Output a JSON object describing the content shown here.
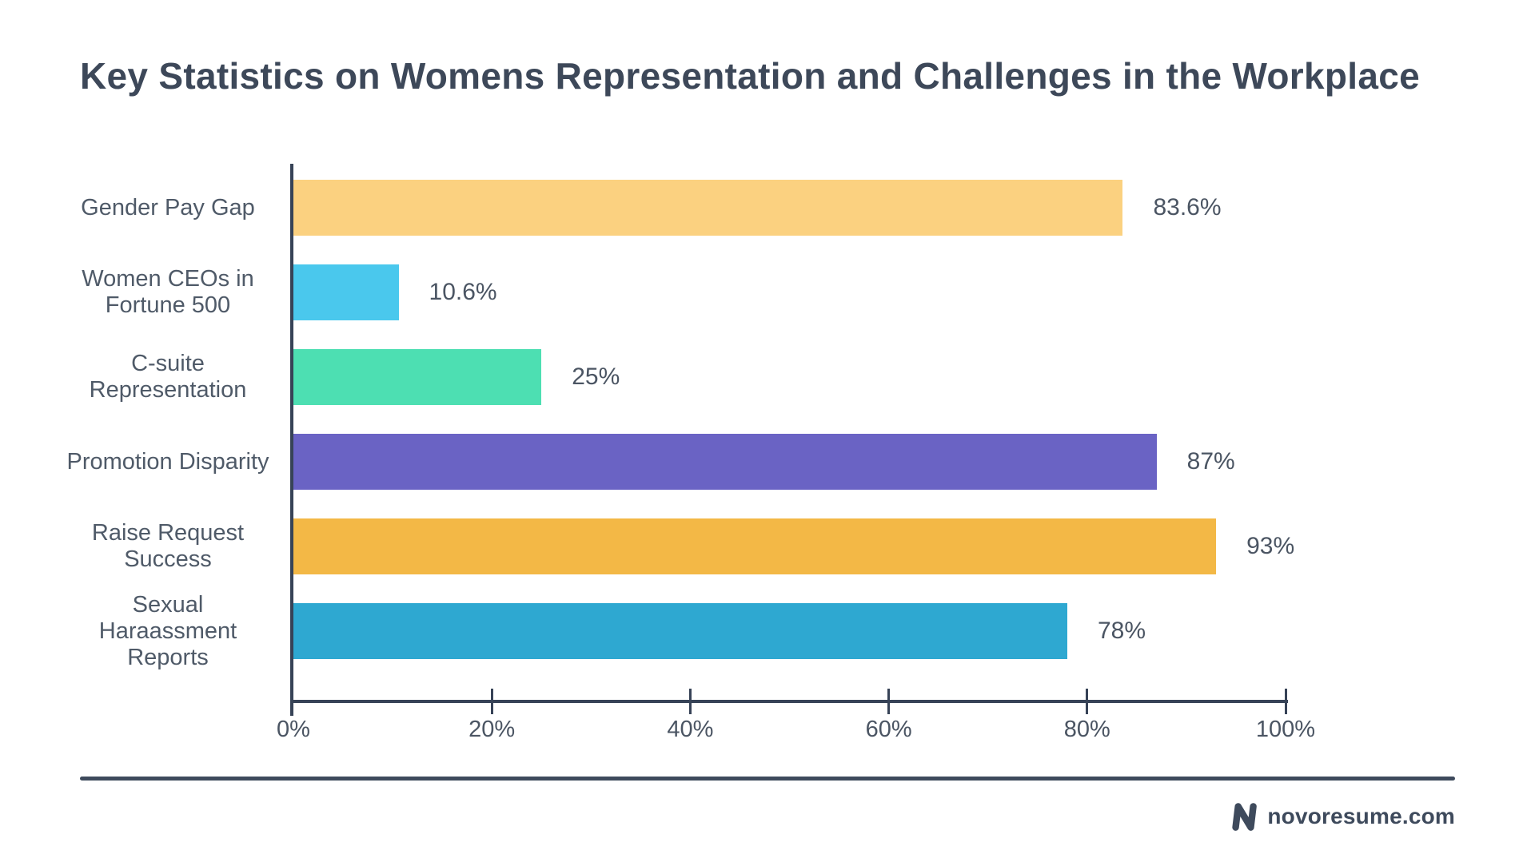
{
  "title": "Key Statistics on Womens Representation and Challenges in the Workplace",
  "chart_data": {
    "type": "bar",
    "orientation": "horizontal",
    "title": "Key Statistics on Womens Representation and Challenges in the Workplace",
    "categories": [
      "Gender Pay Gap",
      "Women CEOs in\nFortune 500",
      "C-suite\nRepresentation",
      "Promotion Disparity",
      "Raise Request\nSuccess",
      "Sexual\nHaraassment\nReports"
    ],
    "values": [
      83.6,
      10.6,
      25,
      87,
      93,
      78
    ],
    "value_labels": [
      "83.6%",
      "10.6%",
      "25%",
      "87%",
      "93%",
      "78%"
    ],
    "bar_colors": [
      "#FBD180",
      "#4AC8ED",
      "#4DDFB2",
      "#6A63C4",
      "#F3B846",
      "#2EA8D1"
    ],
    "x_ticks": [
      "0%",
      "20%",
      "40%",
      "60%",
      "80%",
      "100%"
    ],
    "xlim": [
      0,
      100
    ],
    "xlabel": "",
    "ylabel": "",
    "grid": false,
    "legend": false
  },
  "colors": {
    "axis": "#374357",
    "title_text": "#3D4859",
    "category_text": "#4F5A68",
    "value_text": "#4B5563",
    "divider": "#3E4A5C",
    "background": "#FFFFFF"
  },
  "footer": {
    "brand_text": "novoresume.com",
    "logo_icon": "novoresume-n-icon"
  }
}
